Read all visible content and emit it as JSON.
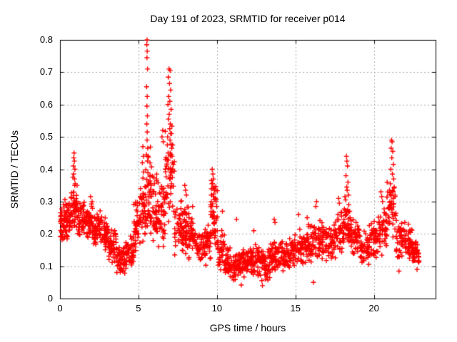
{
  "plot": {
    "background": "#ffffff",
    "frame_color": "#000000",
    "grid_color": "#a8a8a8",
    "text_color": "#000000"
  },
  "chart_data": {
    "type": "scatter",
    "title": "Day 191 of 2023, SRMTID for receiver p014",
    "xlabel": "GPS time / hours",
    "ylabel": "SRMTID / TECUs",
    "xlim": [
      0,
      23.93
    ],
    "ylim": [
      0,
      0.8
    ],
    "xticks": [
      0,
      5,
      10,
      15,
      20
    ],
    "xtick_labels": [
      "0",
      "5",
      "10",
      "15",
      "20"
    ],
    "yticks": [
      0,
      0.1,
      0.2,
      0.3,
      0.4,
      0.5,
      0.6,
      0.7,
      0.8
    ],
    "ytick_labels": [
      "0",
      "0.1",
      "0.2",
      "0.3",
      "0.4",
      "0.5",
      "0.6",
      "0.7",
      "0.8"
    ],
    "grid": "dotted",
    "legend": "none",
    "marker": "plus",
    "marker_color": "#ff0000",
    "marker_size": 7,
    "series_name": "SRMTID",
    "seed": 20230191,
    "band_segments_format": [
      "x_start_hours",
      "x_end_hours",
      "value_low",
      "value_high",
      "point_count"
    ],
    "band_segments": [
      [
        0.0,
        0.3,
        0.16,
        0.3,
        36
      ],
      [
        0.3,
        0.7,
        0.18,
        0.32,
        42
      ],
      [
        0.7,
        1.1,
        0.2,
        0.36,
        46
      ],
      [
        1.1,
        1.6,
        0.18,
        0.31,
        48
      ],
      [
        1.6,
        2.1,
        0.17,
        0.3,
        48
      ],
      [
        2.1,
        2.6,
        0.16,
        0.28,
        48
      ],
      [
        2.6,
        3.1,
        0.14,
        0.26,
        44
      ],
      [
        3.1,
        3.6,
        0.11,
        0.22,
        44
      ],
      [
        3.6,
        4.2,
        0.07,
        0.17,
        50
      ],
      [
        4.2,
        4.7,
        0.09,
        0.2,
        44
      ],
      [
        4.7,
        5.1,
        0.12,
        0.33,
        40
      ],
      [
        5.1,
        5.5,
        0.15,
        0.42,
        40
      ],
      [
        5.5,
        5.9,
        0.17,
        0.48,
        42
      ],
      [
        5.9,
        6.3,
        0.15,
        0.42,
        40
      ],
      [
        6.3,
        6.7,
        0.14,
        0.38,
        40
      ],
      [
        6.7,
        7.3,
        0.2,
        0.55,
        50
      ],
      [
        7.3,
        7.8,
        0.13,
        0.33,
        42
      ],
      [
        7.8,
        8.2,
        0.12,
        0.31,
        40
      ],
      [
        8.2,
        8.7,
        0.11,
        0.27,
        42
      ],
      [
        8.7,
        9.3,
        0.09,
        0.22,
        46
      ],
      [
        9.3,
        9.6,
        0.11,
        0.25,
        30
      ],
      [
        9.6,
        10.05,
        0.14,
        0.38,
        48
      ],
      [
        10.05,
        10.5,
        0.08,
        0.22,
        40
      ],
      [
        10.5,
        11.0,
        0.06,
        0.16,
        48
      ],
      [
        11.0,
        11.6,
        0.05,
        0.15,
        52
      ],
      [
        11.6,
        12.2,
        0.06,
        0.16,
        52
      ],
      [
        12.2,
        12.8,
        0.06,
        0.17,
        52
      ],
      [
        12.8,
        13.4,
        0.05,
        0.16,
        52
      ],
      [
        13.4,
        14.0,
        0.07,
        0.19,
        50
      ],
      [
        14.0,
        14.6,
        0.08,
        0.18,
        48
      ],
      [
        14.6,
        15.2,
        0.09,
        0.2,
        46
      ],
      [
        15.2,
        15.8,
        0.09,
        0.22,
        46
      ],
      [
        15.8,
        16.3,
        0.1,
        0.24,
        42
      ],
      [
        16.3,
        16.9,
        0.11,
        0.26,
        46
      ],
      [
        16.9,
        17.5,
        0.11,
        0.24,
        46
      ],
      [
        17.5,
        18.1,
        0.12,
        0.27,
        46
      ],
      [
        18.1,
        18.5,
        0.15,
        0.33,
        36
      ],
      [
        18.5,
        19.1,
        0.12,
        0.26,
        46
      ],
      [
        19.1,
        19.7,
        0.09,
        0.22,
        46
      ],
      [
        19.7,
        20.3,
        0.11,
        0.26,
        46
      ],
      [
        20.3,
        20.8,
        0.13,
        0.3,
        40
      ],
      [
        20.8,
        21.4,
        0.16,
        0.37,
        44
      ],
      [
        21.4,
        22.0,
        0.11,
        0.26,
        44
      ],
      [
        22.0,
        22.45,
        0.11,
        0.24,
        40
      ],
      [
        22.45,
        22.9,
        0.1,
        0.18,
        38
      ]
    ],
    "peak_points": [
      [
        0.82,
        0.375
      ],
      [
        0.85,
        0.41
      ],
      [
        0.87,
        0.385
      ],
      [
        0.88,
        0.435
      ],
      [
        0.9,
        0.45
      ],
      [
        0.92,
        0.425
      ],
      [
        0.93,
        0.37
      ],
      [
        0.95,
        0.4
      ],
      [
        0.97,
        0.355
      ],
      [
        1.95,
        0.315
      ],
      [
        2.05,
        0.3
      ],
      [
        5.25,
        0.42
      ],
      [
        5.28,
        0.47
      ],
      [
        5.32,
        0.44
      ],
      [
        5.55,
        0.8
      ],
      [
        5.53,
        0.785
      ],
      [
        5.56,
        0.765
      ],
      [
        5.54,
        0.745
      ],
      [
        5.58,
        0.71
      ],
      [
        5.52,
        0.655
      ],
      [
        5.56,
        0.625
      ],
      [
        5.54,
        0.595
      ],
      [
        5.57,
        0.565
      ],
      [
        5.53,
        0.54
      ],
      [
        5.56,
        0.515
      ],
      [
        5.55,
        0.49
      ],
      [
        5.59,
        0.465
      ],
      [
        5.51,
        0.445
      ],
      [
        6.5,
        0.5
      ],
      [
        6.55,
        0.52
      ],
      [
        6.58,
        0.485
      ],
      [
        6.95,
        0.71
      ],
      [
        7.02,
        0.705
      ],
      [
        6.9,
        0.685
      ],
      [
        6.98,
        0.665
      ],
      [
        7.05,
        0.645
      ],
      [
        6.93,
        0.625
      ],
      [
        7.0,
        0.61
      ],
      [
        6.88,
        0.6
      ],
      [
        7.08,
        0.585
      ],
      [
        6.96,
        0.57
      ],
      [
        6.91,
        0.555
      ],
      [
        7.03,
        0.54
      ],
      [
        6.99,
        0.525
      ],
      [
        7.1,
        0.51
      ],
      [
        6.86,
        0.5
      ],
      [
        7.01,
        0.49
      ],
      [
        6.84,
        0.475
      ],
      [
        7.12,
        0.465
      ],
      [
        6.89,
        0.45
      ],
      [
        7.14,
        0.44
      ],
      [
        6.82,
        0.43
      ],
      [
        7.16,
        0.42
      ],
      [
        6.79,
        0.41
      ],
      [
        7.18,
        0.4
      ],
      [
        7.95,
        0.35
      ],
      [
        8.0,
        0.335
      ],
      [
        8.05,
        0.32
      ],
      [
        8.45,
        0.285
      ],
      [
        9.6,
        0.29
      ],
      [
        9.64,
        0.32
      ],
      [
        9.68,
        0.355
      ],
      [
        9.7,
        0.4
      ],
      [
        9.74,
        0.385
      ],
      [
        9.78,
        0.37
      ],
      [
        9.82,
        0.345
      ],
      [
        9.86,
        0.335
      ],
      [
        9.9,
        0.31
      ],
      [
        9.94,
        0.3
      ],
      [
        9.98,
        0.285
      ],
      [
        10.35,
        0.27
      ],
      [
        11.25,
        0.245
      ],
      [
        12.35,
        0.21
      ],
      [
        13.65,
        0.245
      ],
      [
        13.7,
        0.235
      ],
      [
        11.55,
        0.042
      ],
      [
        12.9,
        0.04
      ],
      [
        16.15,
        0.05
      ],
      [
        15.2,
        0.26
      ],
      [
        15.75,
        0.25
      ],
      [
        16.3,
        0.285
      ],
      [
        16.35,
        0.3
      ],
      [
        17.75,
        0.31
      ],
      [
        17.8,
        0.295
      ],
      [
        18.2,
        0.305
      ],
      [
        18.22,
        0.38
      ],
      [
        18.25,
        0.44
      ],
      [
        18.27,
        0.345
      ],
      [
        18.28,
        0.425
      ],
      [
        18.3,
        0.335
      ],
      [
        18.32,
        0.41
      ],
      [
        18.35,
        0.36
      ],
      [
        18.38,
        0.32
      ],
      [
        18.4,
        0.29
      ],
      [
        20.45,
        0.33
      ],
      [
        20.5,
        0.315
      ],
      [
        20.55,
        0.3
      ],
      [
        21.02,
        0.3
      ],
      [
        21.05,
        0.355
      ],
      [
        21.08,
        0.4
      ],
      [
        21.1,
        0.465
      ],
      [
        21.12,
        0.49
      ],
      [
        21.14,
        0.435
      ],
      [
        21.16,
        0.485
      ],
      [
        21.18,
        0.385
      ],
      [
        21.2,
        0.455
      ],
      [
        21.22,
        0.33
      ],
      [
        21.24,
        0.415
      ],
      [
        21.26,
        0.37
      ],
      [
        21.3,
        0.345
      ],
      [
        21.35,
        0.315
      ],
      [
        21.6,
        0.085
      ],
      [
        22.75,
        0.09
      ]
    ]
  }
}
